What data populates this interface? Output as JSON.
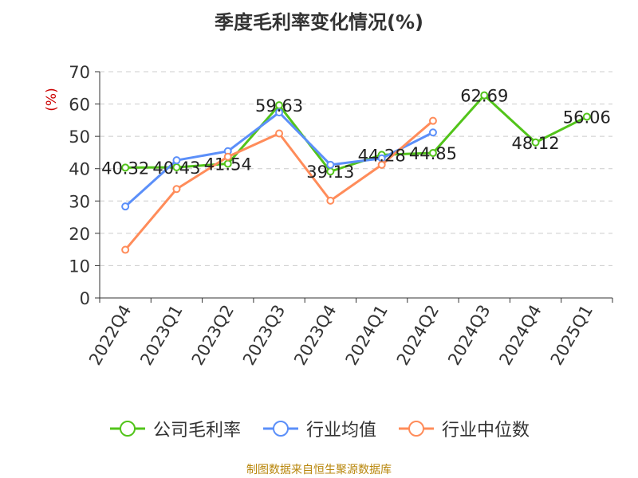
{
  "chart_data": {
    "type": "line",
    "title": "季度毛利率变化情况(%)",
    "ylabel": "(%)",
    "xlabel": "",
    "categories": [
      "2022Q4",
      "2023Q1",
      "2023Q2",
      "2023Q3",
      "2023Q4",
      "2024Q1",
      "2024Q2",
      "2024Q3",
      "2024Q4",
      "2025Q1"
    ],
    "ylim": [
      0,
      70
    ],
    "yticks": [
      "0",
      "10",
      "20",
      "30",
      "40",
      "50",
      "60",
      "70"
    ],
    "grid": "horizontal-dashed",
    "legend_position": "bottom",
    "series": [
      {
        "name": "公司毛利率",
        "color": "#52c41a",
        "values": [
          40.32,
          40.43,
          41.54,
          59.63,
          39.13,
          44.28,
          44.85,
          62.69,
          48.12,
          56.06
        ],
        "labels": [
          "40.32",
          "40.43",
          "41.54",
          "59.63",
          "39.13",
          "44.28",
          "44.85",
          "62.69",
          "48.12",
          "56.06"
        ]
      },
      {
        "name": "行业均值",
        "color": "#5b8ff9",
        "values": [
          28.3,
          42.6,
          45.4,
          57.4,
          41.2,
          43.2,
          51.2,
          null,
          null,
          null
        ]
      },
      {
        "name": "行业中位数",
        "color": "#ff8c5a",
        "values": [
          14.9,
          33.7,
          43.7,
          50.9,
          30.1,
          41.2,
          54.8,
          null,
          null,
          null
        ]
      }
    ]
  },
  "source_note": "制图数据来自恒生聚源数据库"
}
